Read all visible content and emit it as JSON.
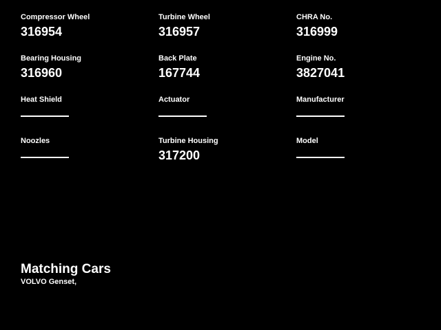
{
  "page": {
    "background_color": "#000000",
    "text_color": "#ffffff"
  },
  "fields": [
    {
      "label": "Compressor Wheel",
      "value": "316954"
    },
    {
      "label": "Turbine Wheel",
      "value": "316957"
    },
    {
      "label": "CHRA No.",
      "value": "316999"
    },
    {
      "label": "Bearing Housing",
      "value": "316960"
    },
    {
      "label": "Back Plate",
      "value": "167744"
    },
    {
      "label": "Engine No.",
      "value": "3827041"
    },
    {
      "label": "Heat Shield",
      "value": ""
    },
    {
      "label": "Actuator",
      "value": ""
    },
    {
      "label": "Manufacturer",
      "value": ""
    },
    {
      "label": "Noozles",
      "value": ""
    },
    {
      "label": "Turbine Housing",
      "value": "317200"
    },
    {
      "label": "Model",
      "value": ""
    }
  ],
  "matching_cars": {
    "heading": "Matching Cars",
    "entries": "VOLVO Genset,"
  }
}
